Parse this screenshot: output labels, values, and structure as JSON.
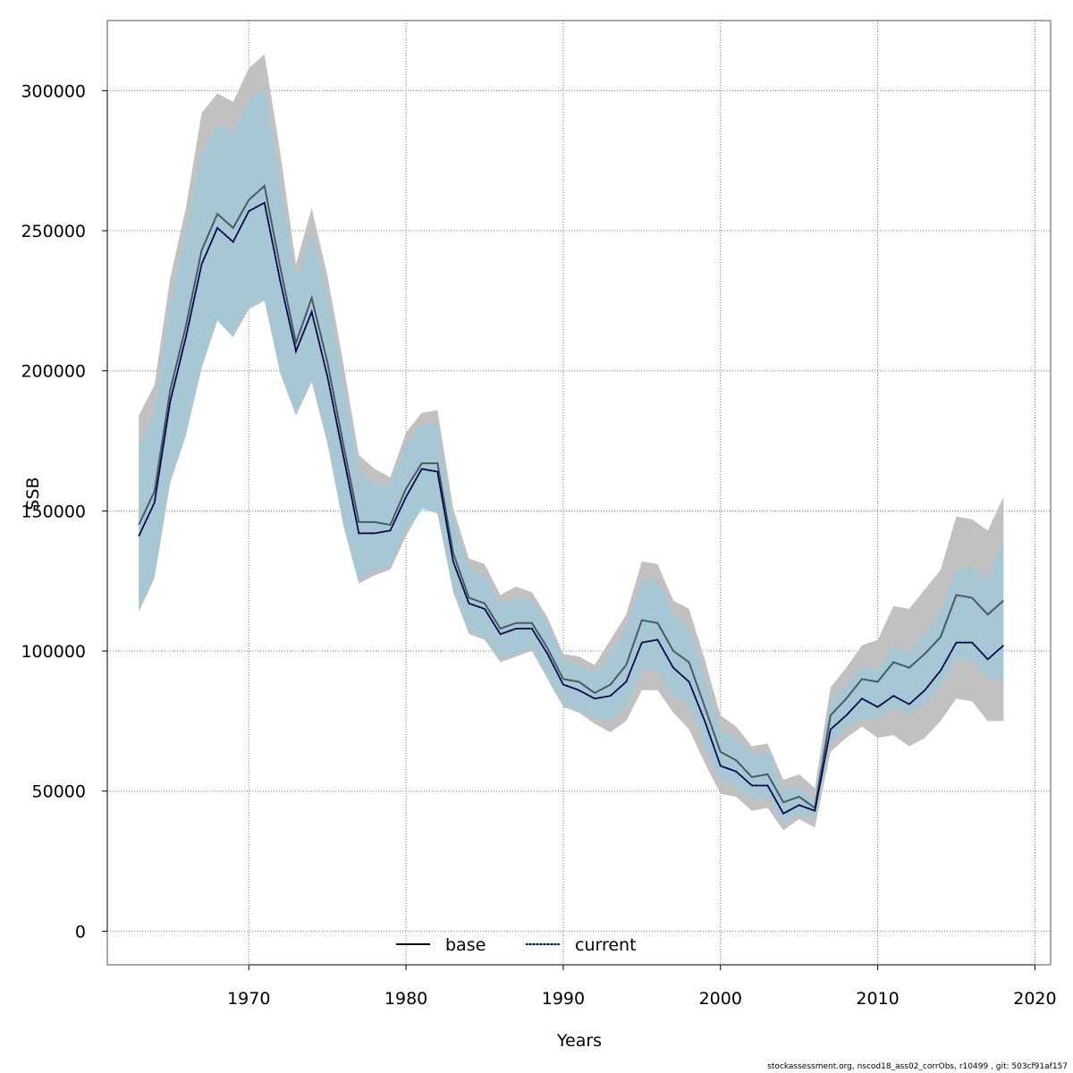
{
  "footer": "stockassessment.org, nscod18_ass02_corrObs, r10499 , git: 503cf91af157",
  "chart_data": {
    "type": "area",
    "xlabel": "Years",
    "ylabel": "SSB",
    "xlim": [
      1961,
      2021
    ],
    "ylim": [
      -12000,
      325000
    ],
    "xticks": [
      1970,
      1980,
      1990,
      2000,
      2010,
      2020
    ],
    "yticks": [
      0,
      50000,
      100000,
      150000,
      200000,
      250000,
      300000
    ],
    "grid": true,
    "legend_position": "bottom-center",
    "colors": {
      "base_band": "#bebebe",
      "base_line": "#000000",
      "current_band": "#87ceeb",
      "current_line": "#00008b",
      "current_line_dash": "#1e90ff"
    },
    "years": [
      1963,
      1964,
      1965,
      1966,
      1967,
      1968,
      1969,
      1970,
      1971,
      1972,
      1973,
      1974,
      1975,
      1976,
      1977,
      1978,
      1979,
      1980,
      1981,
      1982,
      1983,
      1984,
      1985,
      1986,
      1987,
      1988,
      1989,
      1990,
      1991,
      1992,
      1993,
      1994,
      1995,
      1996,
      1997,
      1998,
      1999,
      2000,
      2001,
      2002,
      2003,
      2004,
      2005,
      2006,
      2007,
      2008,
      2009,
      2010,
      2011,
      2012,
      2013,
      2014,
      2015,
      2016,
      2017,
      2018
    ],
    "series": [
      {
        "name": "base",
        "style": "solid",
        "values": [
          145000,
          157000,
          193000,
          216000,
          243000,
          256000,
          251000,
          261000,
          266000,
          237000,
          210000,
          226000,
          203000,
          174000,
          146000,
          146000,
          145000,
          158000,
          167000,
          167000,
          135000,
          119000,
          117000,
          108000,
          110000,
          110000,
          101000,
          90000,
          89000,
          85000,
          88000,
          95000,
          111000,
          110000,
          100000,
          96000,
          80000,
          64000,
          61000,
          55000,
          56000,
          46000,
          48000,
          44000,
          77000,
          83000,
          90000,
          89000,
          96000,
          94000,
          99000,
          105000,
          120000,
          119000,
          113000,
          118000
        ],
        "lower": [
          114000,
          126000,
          160000,
          177000,
          201000,
          218000,
          212000,
          222000,
          225000,
          199000,
          184000,
          196000,
          174000,
          145000,
          124000,
          127000,
          129000,
          141000,
          151000,
          149000,
          121000,
          106000,
          104000,
          96000,
          98000,
          100000,
          90000,
          80000,
          78000,
          74000,
          71000,
          75000,
          86000,
          86000,
          78000,
          72000,
          60000,
          49000,
          48000,
          43000,
          44000,
          36000,
          40000,
          37000,
          64000,
          69000,
          73000,
          69000,
          70000,
          66000,
          69000,
          75000,
          83000,
          82000,
          75000,
          75000
        ],
        "upper": [
          184000,
          195000,
          233000,
          258000,
          292000,
          299000,
          296000,
          308000,
          313000,
          278000,
          238000,
          258000,
          234000,
          203000,
          170000,
          165000,
          162000,
          178000,
          185000,
          186000,
          151000,
          133000,
          131000,
          120000,
          123000,
          121000,
          112000,
          99000,
          98000,
          95000,
          104000,
          113000,
          132000,
          131000,
          118000,
          115000,
          97000,
          77000,
          73000,
          66000,
          67000,
          54000,
          56000,
          51000,
          87000,
          94000,
          102000,
          104000,
          116000,
          115000,
          122000,
          129000,
          148000,
          147000,
          143000,
          155000
        ]
      },
      {
        "name": "current",
        "style": "dotted",
        "values": [
          141000,
          153000,
          189000,
          212000,
          238000,
          251000,
          246000,
          257000,
          260000,
          232000,
          207000,
          221000,
          198000,
          170000,
          142000,
          142000,
          143000,
          155000,
          165000,
          164000,
          132000,
          117000,
          115000,
          106000,
          108000,
          108000,
          99000,
          88000,
          86000,
          83000,
          84000,
          89000,
          103000,
          104000,
          94000,
          89000,
          75000,
          59000,
          57000,
          52000,
          52000,
          42000,
          45000,
          43000,
          72000,
          77000,
          83000,
          80000,
          84000,
          81000,
          86000,
          93000,
          103000,
          103000,
          97000,
          102000
        ],
        "lower": [
          115000,
          127000,
          160000,
          177000,
          201000,
          218000,
          212000,
          223000,
          226000,
          200000,
          184000,
          197000,
          175000,
          146000,
          125000,
          129000,
          130000,
          143000,
          150000,
          150000,
          122000,
          107000,
          105000,
          97000,
          99000,
          101000,
          91000,
          81000,
          79000,
          76000,
          75000,
          80000,
          93000,
          93000,
          84000,
          81000,
          66000,
          54000,
          52000,
          47000,
          48000,
          39000,
          42000,
          40000,
          67000,
          72000,
          76000,
          76000,
          80000,
          77000,
          81000,
          88000,
          97000,
          97000,
          90000,
          90000
        ],
        "upper": [
          173000,
          185000,
          224000,
          250000,
          278000,
          288000,
          285000,
          297000,
          301000,
          268000,
          233000,
          250000,
          227000,
          197000,
          164000,
          160000,
          159000,
          174000,
          181000,
          181000,
          147000,
          130000,
          127000,
          117000,
          119000,
          119000,
          110000,
          97000,
          95000,
          92000,
          98000,
          108000,
          125000,
          126000,
          113000,
          108000,
          91000,
          72000,
          69000,
          63000,
          64000,
          50000,
          52000,
          47000,
          82000,
          88000,
          95000,
          93000,
          102000,
          100000,
          106000,
          114000,
          129000,
          130000,
          126000,
          140000
        ]
      }
    ]
  }
}
